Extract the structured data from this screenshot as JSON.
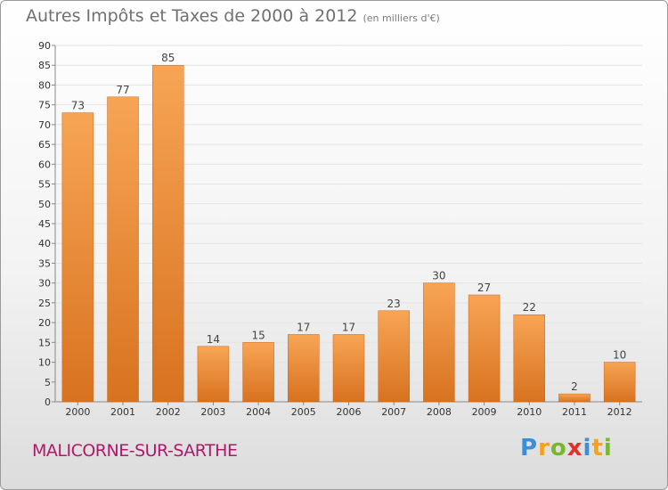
{
  "header": {
    "title": "Autres Impôts et Taxes de 2000 à 2012",
    "subtitle": "(en milliers d'€)"
  },
  "footer": {
    "commune": "MALICORNE-SUR-SARTHE",
    "logo": {
      "letters": [
        "P",
        "r",
        "o",
        "x",
        "i",
        "t",
        "i"
      ],
      "colors": [
        "#3a8fd8",
        "#f2a31b",
        "#78b82a",
        "#e0312b",
        "#3a8fd8",
        "#f2a31b",
        "#78b82a"
      ]
    }
  },
  "chart_data": {
    "type": "bar",
    "categories": [
      "2000",
      "2001",
      "2002",
      "2003",
      "2004",
      "2005",
      "2006",
      "2007",
      "2008",
      "2009",
      "2010",
      "2011",
      "2012"
    ],
    "values": [
      73,
      77,
      85,
      14,
      15,
      17,
      17,
      23,
      30,
      27,
      22,
      2,
      10
    ],
    "ylim": [
      0,
      90
    ],
    "yticks": [
      0,
      5,
      10,
      15,
      20,
      25,
      30,
      35,
      40,
      45,
      50,
      55,
      60,
      65,
      70,
      75,
      80,
      85,
      90
    ],
    "grid": true,
    "bar_color_light": "#f7a555",
    "bar_color_dark": "#d8721f"
  }
}
